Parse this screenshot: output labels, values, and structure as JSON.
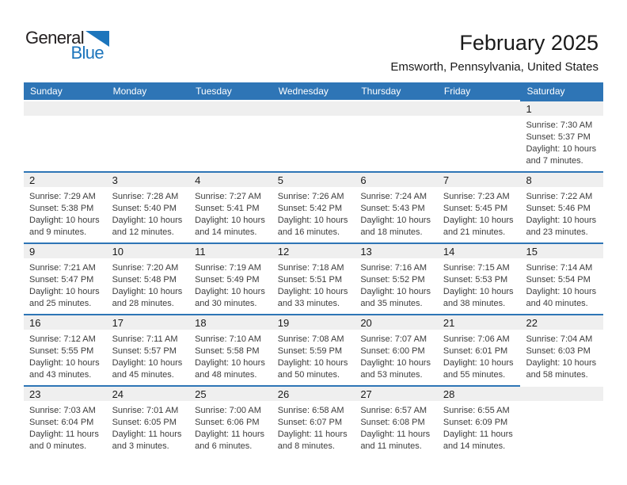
{
  "logo": {
    "line1": "General",
    "line2": "Blue",
    "color_blue": "#1C75BC"
  },
  "header": {
    "title": "February 2025",
    "subtitle": "Emsworth, Pennsylvania, United States"
  },
  "colors": {
    "header_blue": "#2E75B6",
    "band_gray": "#EFEFEF"
  },
  "calendar": {
    "weekdays": [
      "Sunday",
      "Monday",
      "Tuesday",
      "Wednesday",
      "Thursday",
      "Friday",
      "Saturday"
    ],
    "weeks": [
      [
        null,
        null,
        null,
        null,
        null,
        null,
        {
          "day": "1",
          "sunrise": "Sunrise: 7:30 AM",
          "sunset": "Sunset: 5:37 PM",
          "daylight1": "Daylight: 10 hours",
          "daylight2": "and 7 minutes."
        }
      ],
      [
        {
          "day": "2",
          "sunrise": "Sunrise: 7:29 AM",
          "sunset": "Sunset: 5:38 PM",
          "daylight1": "Daylight: 10 hours",
          "daylight2": "and 9 minutes."
        },
        {
          "day": "3",
          "sunrise": "Sunrise: 7:28 AM",
          "sunset": "Sunset: 5:40 PM",
          "daylight1": "Daylight: 10 hours",
          "daylight2": "and 12 minutes."
        },
        {
          "day": "4",
          "sunrise": "Sunrise: 7:27 AM",
          "sunset": "Sunset: 5:41 PM",
          "daylight1": "Daylight: 10 hours",
          "daylight2": "and 14 minutes."
        },
        {
          "day": "5",
          "sunrise": "Sunrise: 7:26 AM",
          "sunset": "Sunset: 5:42 PM",
          "daylight1": "Daylight: 10 hours",
          "daylight2": "and 16 minutes."
        },
        {
          "day": "6",
          "sunrise": "Sunrise: 7:24 AM",
          "sunset": "Sunset: 5:43 PM",
          "daylight1": "Daylight: 10 hours",
          "daylight2": "and 18 minutes."
        },
        {
          "day": "7",
          "sunrise": "Sunrise: 7:23 AM",
          "sunset": "Sunset: 5:45 PM",
          "daylight1": "Daylight: 10 hours",
          "daylight2": "and 21 minutes."
        },
        {
          "day": "8",
          "sunrise": "Sunrise: 7:22 AM",
          "sunset": "Sunset: 5:46 PM",
          "daylight1": "Daylight: 10 hours",
          "daylight2": "and 23 minutes."
        }
      ],
      [
        {
          "day": "9",
          "sunrise": "Sunrise: 7:21 AM",
          "sunset": "Sunset: 5:47 PM",
          "daylight1": "Daylight: 10 hours",
          "daylight2": "and 25 minutes."
        },
        {
          "day": "10",
          "sunrise": "Sunrise: 7:20 AM",
          "sunset": "Sunset: 5:48 PM",
          "daylight1": "Daylight: 10 hours",
          "daylight2": "and 28 minutes."
        },
        {
          "day": "11",
          "sunrise": "Sunrise: 7:19 AM",
          "sunset": "Sunset: 5:49 PM",
          "daylight1": "Daylight: 10 hours",
          "daylight2": "and 30 minutes."
        },
        {
          "day": "12",
          "sunrise": "Sunrise: 7:18 AM",
          "sunset": "Sunset: 5:51 PM",
          "daylight1": "Daylight: 10 hours",
          "daylight2": "and 33 minutes."
        },
        {
          "day": "13",
          "sunrise": "Sunrise: 7:16 AM",
          "sunset": "Sunset: 5:52 PM",
          "daylight1": "Daylight: 10 hours",
          "daylight2": "and 35 minutes."
        },
        {
          "day": "14",
          "sunrise": "Sunrise: 7:15 AM",
          "sunset": "Sunset: 5:53 PM",
          "daylight1": "Daylight: 10 hours",
          "daylight2": "and 38 minutes."
        },
        {
          "day": "15",
          "sunrise": "Sunrise: 7:14 AM",
          "sunset": "Sunset: 5:54 PM",
          "daylight1": "Daylight: 10 hours",
          "daylight2": "and 40 minutes."
        }
      ],
      [
        {
          "day": "16",
          "sunrise": "Sunrise: 7:12 AM",
          "sunset": "Sunset: 5:55 PM",
          "daylight1": "Daylight: 10 hours",
          "daylight2": "and 43 minutes."
        },
        {
          "day": "17",
          "sunrise": "Sunrise: 7:11 AM",
          "sunset": "Sunset: 5:57 PM",
          "daylight1": "Daylight: 10 hours",
          "daylight2": "and 45 minutes."
        },
        {
          "day": "18",
          "sunrise": "Sunrise: 7:10 AM",
          "sunset": "Sunset: 5:58 PM",
          "daylight1": "Daylight: 10 hours",
          "daylight2": "and 48 minutes."
        },
        {
          "day": "19",
          "sunrise": "Sunrise: 7:08 AM",
          "sunset": "Sunset: 5:59 PM",
          "daylight1": "Daylight: 10 hours",
          "daylight2": "and 50 minutes."
        },
        {
          "day": "20",
          "sunrise": "Sunrise: 7:07 AM",
          "sunset": "Sunset: 6:00 PM",
          "daylight1": "Daylight: 10 hours",
          "daylight2": "and 53 minutes."
        },
        {
          "day": "21",
          "sunrise": "Sunrise: 7:06 AM",
          "sunset": "Sunset: 6:01 PM",
          "daylight1": "Daylight: 10 hours",
          "daylight2": "and 55 minutes."
        },
        {
          "day": "22",
          "sunrise": "Sunrise: 7:04 AM",
          "sunset": "Sunset: 6:03 PM",
          "daylight1": "Daylight: 10 hours",
          "daylight2": "and 58 minutes."
        }
      ],
      [
        {
          "day": "23",
          "sunrise": "Sunrise: 7:03 AM",
          "sunset": "Sunset: 6:04 PM",
          "daylight1": "Daylight: 11 hours",
          "daylight2": "and 0 minutes."
        },
        {
          "day": "24",
          "sunrise": "Sunrise: 7:01 AM",
          "sunset": "Sunset: 6:05 PM",
          "daylight1": "Daylight: 11 hours",
          "daylight2": "and 3 minutes."
        },
        {
          "day": "25",
          "sunrise": "Sunrise: 7:00 AM",
          "sunset": "Sunset: 6:06 PM",
          "daylight1": "Daylight: 11 hours",
          "daylight2": "and 6 minutes."
        },
        {
          "day": "26",
          "sunrise": "Sunrise: 6:58 AM",
          "sunset": "Sunset: 6:07 PM",
          "daylight1": "Daylight: 11 hours",
          "daylight2": "and 8 minutes."
        },
        {
          "day": "27",
          "sunrise": "Sunrise: 6:57 AM",
          "sunset": "Sunset: 6:08 PM",
          "daylight1": "Daylight: 11 hours",
          "daylight2": "and 11 minutes."
        },
        {
          "day": "28",
          "sunrise": "Sunrise: 6:55 AM",
          "sunset": "Sunset: 6:09 PM",
          "daylight1": "Daylight: 11 hours",
          "daylight2": "and 14 minutes."
        },
        null
      ]
    ]
  }
}
